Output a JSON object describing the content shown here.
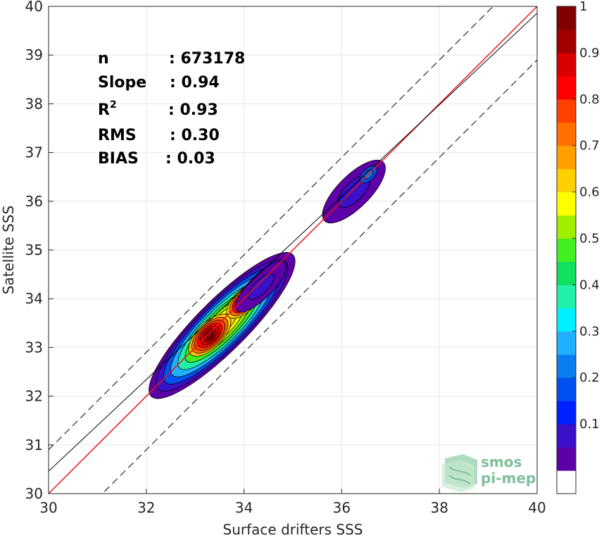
{
  "chart_data": {
    "type": "density-scatter",
    "xlabel": "Surface drifters SSS",
    "ylabel": "Satellite SSS",
    "xlim": [
      30,
      40
    ],
    "ylim": [
      30,
      40
    ],
    "xticks": [
      30,
      32,
      34,
      36,
      38,
      40
    ],
    "yticks": [
      30,
      31,
      32,
      33,
      34,
      35,
      36,
      37,
      38,
      39,
      40
    ],
    "grid": true,
    "stats": [
      {
        "key": "n",
        "sep": ": ",
        "value": "673178"
      },
      {
        "key": "Slope",
        "sep": ": ",
        "value": "0.94"
      },
      {
        "key": "R",
        "sup": "2",
        "sep": ": ",
        "value": "0.93"
      },
      {
        "key": "RMS",
        "sep": ": ",
        "value": "0.30"
      },
      {
        "key": "BIAS",
        "sep": ": ",
        "value": "0.03"
      }
    ],
    "lines": [
      {
        "kind": "identity",
        "color": "#e8141c",
        "style": "solid",
        "slope": 1,
        "intercept": 0
      },
      {
        "kind": "fit",
        "color": "#000000",
        "style": "solid",
        "slope": 0.94,
        "intercept": 2.26
      },
      {
        "kind": "upper-bound",
        "color": "#000000",
        "style": "dashed",
        "slope": 1,
        "intercept": 0.9
      },
      {
        "kind": "lower-bound",
        "color": "#000000",
        "style": "dashed",
        "slope": 1,
        "intercept": -1.1
      }
    ],
    "density_peaks": [
      {
        "x": 33.3,
        "y": 33.25,
        "level": 1.0
      },
      {
        "x": 34.0,
        "y": 33.95,
        "level": 0.97
      },
      {
        "x": 36.55,
        "y": 36.55,
        "level": 0.25
      },
      {
        "x": 36.0,
        "y": 36.05,
        "level": 0.18
      }
    ],
    "colorbar": {
      "min": 0,
      "max": 1,
      "ticks": [
        "0.1",
        "0.2",
        "0.3",
        "0.4",
        "0.5",
        "0.6",
        "0.7",
        "0.8",
        "0.9",
        "1"
      ],
      "colors": [
        "#ffffff",
        "#5e00a8",
        "#3a10c8",
        "#0020ff",
        "#0050f0",
        "#0a7ef0",
        "#20b0ff",
        "#00f0ff",
        "#20f0a8",
        "#10e060",
        "#40f020",
        "#a0ee00",
        "#ffff00",
        "#ffd000",
        "#ffa000",
        "#ff7000",
        "#ff4000",
        "#ff0000",
        "#d80000",
        "#a00000",
        "#800000"
      ]
    },
    "logo": {
      "line1": "smos",
      "line2": "pi-mep"
    }
  }
}
